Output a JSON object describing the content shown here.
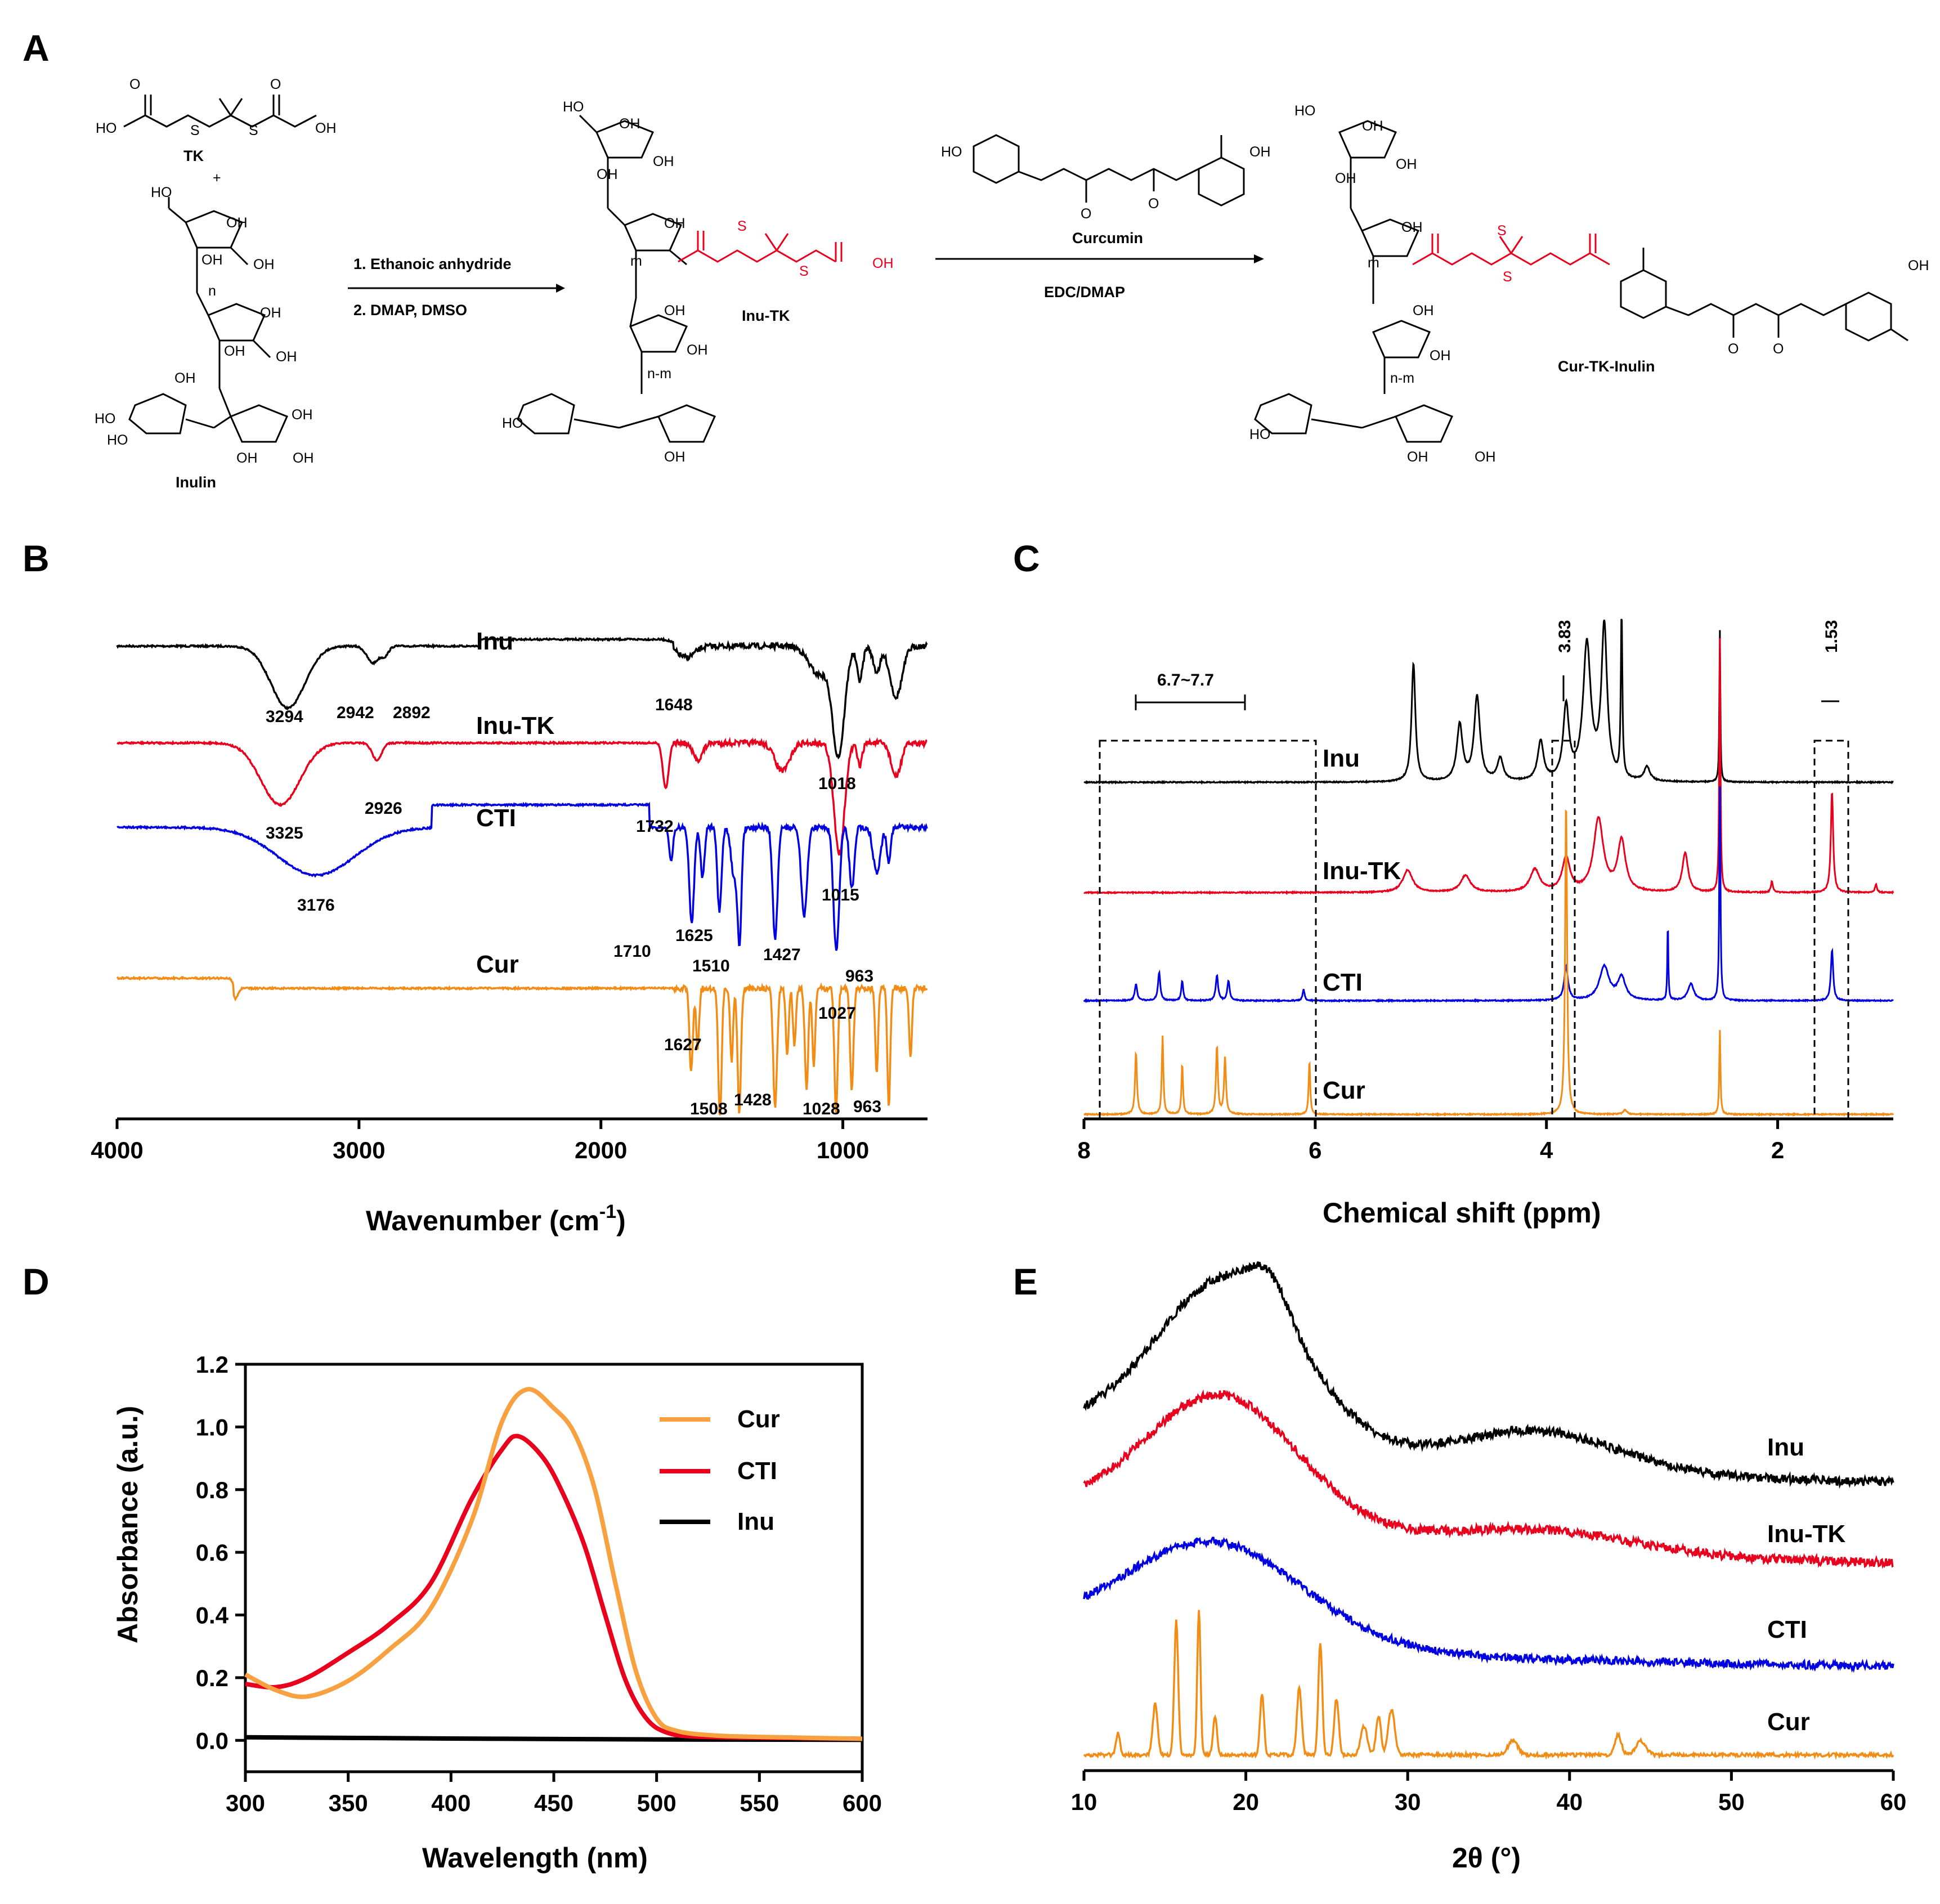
{
  "panels": {
    "a": "A",
    "b": "B",
    "c": "C",
    "d": "D",
    "e": "E"
  },
  "scheme": {
    "tk_label": "TK",
    "plus": "+",
    "inulin_label": "Inulin",
    "step1": "1. Ethanoic anhydride",
    "step2": "2. DMAP, DMSO",
    "inutk_label": "Inu-TK",
    "curcumin_label": "Curcumin",
    "edc_label": "EDC/DMAP",
    "product_label": "Cur-TK-Inulin",
    "atoms": {
      "oh": "OH",
      "ho": "HO",
      "o": "O",
      "s": "S",
      "n": "n",
      "m": "m",
      "nm": "n-m"
    }
  },
  "chart_data": [
    {
      "id": "B",
      "type": "line",
      "xlabel": "Wavenumber (cm⁻¹)",
      "xlabel_main": "Wavenumber (cm",
      "xlabel_sup": "-1",
      "xlabel_end": ")",
      "xlim": [
        4000,
        650
      ],
      "xticks": [
        "4000",
        "3000",
        "2000",
        "1000"
      ],
      "series": [
        {
          "name": "Inu",
          "color": "#000000",
          "peaks": [
            "3294",
            "2942",
            "2892",
            "1648",
            "1018"
          ]
        },
        {
          "name": "Inu-TK",
          "color": "#e8001c",
          "peaks": [
            "3325",
            "2926",
            "1732",
            "1015"
          ]
        },
        {
          "name": "CTI",
          "color": "#0000e0",
          "peaks": [
            "3176",
            "1710",
            "1625",
            "1510",
            "1427",
            "963",
            "1027"
          ]
        },
        {
          "name": "Cur",
          "color": "#f28c14",
          "peaks": [
            "1627",
            "1508",
            "1428",
            "1028",
            "963"
          ]
        }
      ]
    },
    {
      "id": "C",
      "type": "line",
      "xlabel": "Chemical shift (ppm)",
      "xlim": [
        8,
        1
      ],
      "xticks": [
        "8",
        "6",
        "4",
        "2"
      ],
      "annotations": [
        "6.7~7.7",
        "3.83",
        "1.53"
      ],
      "series": [
        {
          "name": "Inu",
          "color": "#000000"
        },
        {
          "name": "Inu-TK",
          "color": "#e8001c"
        },
        {
          "name": "CTI",
          "color": "#0000e0"
        },
        {
          "name": "Cur",
          "color": "#f28c14"
        }
      ]
    },
    {
      "id": "D",
      "type": "line",
      "xlabel": "Wavelength (nm)",
      "ylabel": "Absorbance (a.u.)",
      "xlim": [
        300,
        600
      ],
      "ylim": [
        -0.1,
        1.2
      ],
      "xticks": [
        "300",
        "350",
        "400",
        "450",
        "500",
        "550",
        "600"
      ],
      "yticks": [
        "0.0",
        "0.2",
        "0.4",
        "0.6",
        "0.8",
        "1.0",
        "1.2"
      ],
      "legend": [
        "Cur",
        "CTI",
        "Inu"
      ],
      "series": [
        {
          "name": "Cur",
          "color": "#f7a140",
          "x": [
            300,
            315,
            330,
            350,
            370,
            390,
            410,
            425,
            437,
            450,
            460,
            470,
            480,
            490,
            500,
            510,
            530,
            560,
            600
          ],
          "y": [
            0.21,
            0.16,
            0.14,
            0.19,
            0.29,
            0.42,
            0.7,
            1.02,
            1.12,
            1.06,
            0.98,
            0.8,
            0.5,
            0.22,
            0.07,
            0.03,
            0.015,
            0.01,
            0.005
          ]
        },
        {
          "name": "CTI",
          "color": "#e8001c",
          "x": [
            300,
            315,
            330,
            350,
            370,
            390,
            410,
            425,
            433,
            445,
            455,
            465,
            475,
            485,
            495,
            505,
            520,
            560,
            600
          ],
          "y": [
            0.18,
            0.17,
            0.2,
            0.28,
            0.37,
            0.5,
            0.77,
            0.93,
            0.97,
            0.9,
            0.78,
            0.62,
            0.4,
            0.19,
            0.07,
            0.025,
            0.012,
            0.008,
            0.005
          ]
        },
        {
          "name": "Inu",
          "color": "#000000",
          "x": [
            300,
            400,
            500,
            600
          ],
          "y": [
            0.01,
            0.006,
            0.003,
            0.002
          ]
        }
      ]
    },
    {
      "id": "E",
      "type": "line",
      "xlabel": "2θ (°)",
      "xlim": [
        10,
        60
      ],
      "xticks": [
        "10",
        "20",
        "30",
        "40",
        "50",
        "60"
      ],
      "series": [
        {
          "name": "Inu",
          "color": "#000000"
        },
        {
          "name": "Inu-TK",
          "color": "#e8001c"
        },
        {
          "name": "CTI",
          "color": "#0000e0"
        },
        {
          "name": "Cur",
          "color": "#f28c14",
          "peaks_2theta": [
            12.1,
            14.4,
            15.7,
            17.1,
            18.1,
            21.0,
            23.3,
            24.6,
            25.6,
            27.3,
            29.0,
            36.5,
            43.0,
            44.4
          ]
        }
      ]
    }
  ]
}
